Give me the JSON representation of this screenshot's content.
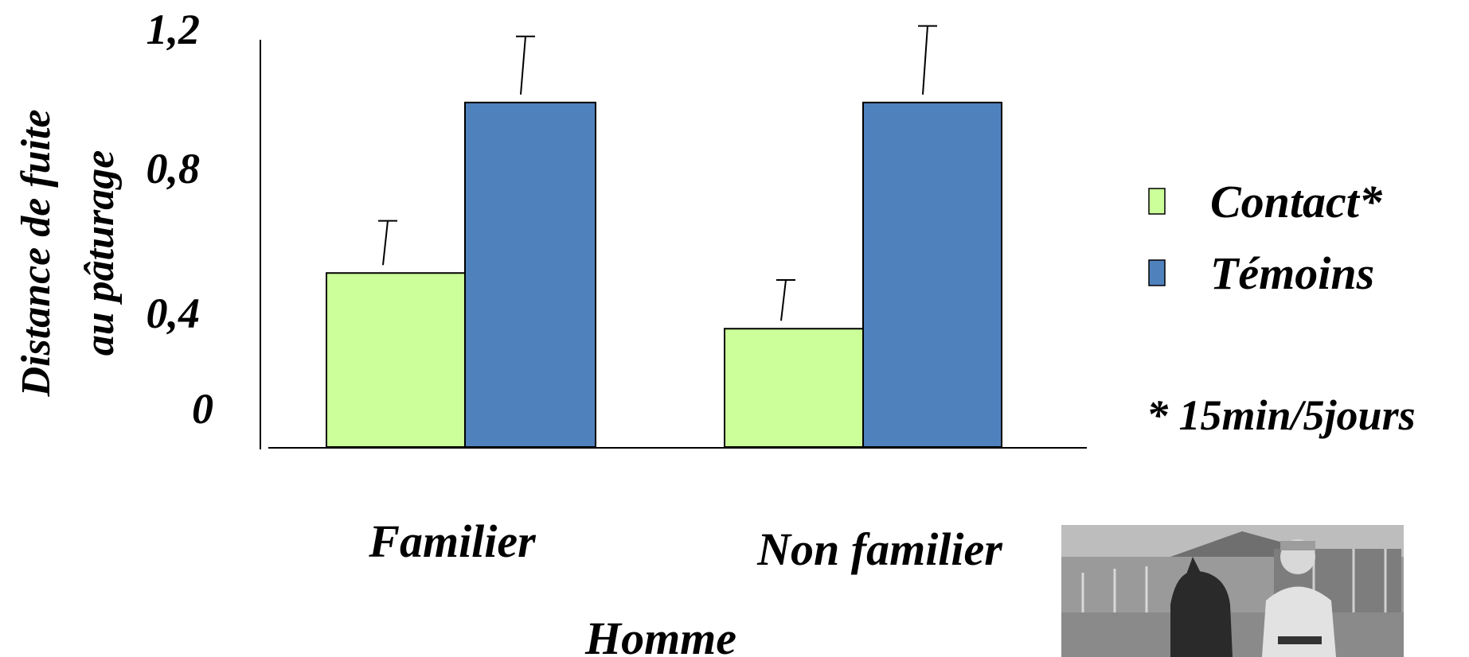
{
  "chart_data": {
    "type": "bar",
    "title": "",
    "ylabel_lines": [
      "Distance de fuite",
      "au pâturage"
    ],
    "xlabel": "Homme",
    "categories": [
      "Familier",
      "Non familier"
    ],
    "yticks": [
      "0",
      "0,4",
      "0,8",
      "1,2"
    ],
    "ylim": [
      0,
      1.2
    ],
    "series": [
      {
        "name": "Contact*",
        "color": "#ccff99",
        "values": [
          0.5,
          0.34
        ],
        "errors": [
          0.15,
          0.14
        ]
      },
      {
        "name": "Témoins",
        "color": "#4f81bd",
        "values": [
          0.99,
          0.99
        ],
        "errors": [
          0.19,
          0.22
        ]
      }
    ],
    "grid": false,
    "legend": "right",
    "annotation": "* 15min/5jours"
  },
  "photo": {
    "description_icon": "photo-man-with-horse"
  }
}
